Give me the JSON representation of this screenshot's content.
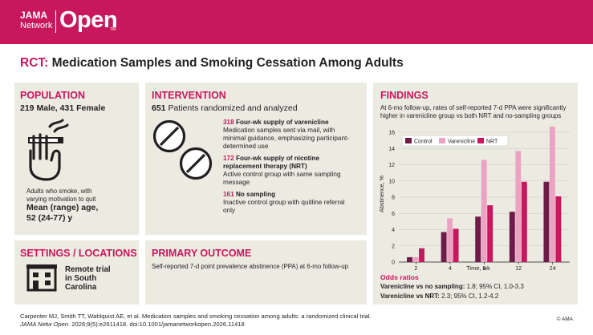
{
  "brand": {
    "jama": "JAMA",
    "network": "Network",
    "open": "Open",
    "tm": "TM"
  },
  "title": {
    "prefix": "RCT:",
    "text": "Medication Samples and Smoking Cessation Among Adults"
  },
  "population": {
    "heading": "POPULATION",
    "male_count": "219",
    "male_label": "Male,",
    "female_count": "431",
    "female_label": "Female",
    "description": "Adults who smoke, with varying motivation to quit",
    "age_label": "Mean (range) age,",
    "age_value": "52 (24-77) y",
    "icon": "cigarette-hand-icon"
  },
  "settings": {
    "heading": "SETTINGS / LOCATIONS",
    "location": "Remote trial in South Carolina",
    "icon": "building-icon"
  },
  "intervention": {
    "heading": "INTERVENTION",
    "randomized_count": "651",
    "randomized_label": "Patients randomized and analyzed",
    "icon": "pills-icon",
    "arms": [
      {
        "count": "318",
        "name": "Four-wk supply of varenicline",
        "description": "Medication samples sent via mail, with minimal guidance, emphasizing participant-determined use"
      },
      {
        "count": "172",
        "name": "Four-wk supply of nicotine replacement therapy (NRT)",
        "description": "Active control group with same sampling message"
      },
      {
        "count": "161",
        "name": "No sampling",
        "description": "Inactive control group with quitline referral only"
      }
    ]
  },
  "outcome": {
    "heading": "PRIMARY OUTCOME",
    "text": "Self-reported 7-d point prevalence abstinence (PPA) at 6-mo follow-up"
  },
  "findings": {
    "heading": "FINDINGS",
    "text": "At 6-mo follow-up, rates of self-reported 7-d PPA were significantly higher in varenicline group vs both NRT and no-sampling groups",
    "odds_heading": "Odds ratios",
    "odds": [
      {
        "label": "Varenicline vs no sampling:",
        "value": "1.8; 95% CI, 1.0-3.3"
      },
      {
        "label": "Varenicline vs NRT:",
        "value": "2.3; 95% CI, 1.2-4.2"
      }
    ]
  },
  "chart_data": {
    "type": "bar",
    "categories": [
      "2",
      "4",
      "8",
      "12",
      "24"
    ],
    "xlabel": "Time, wk",
    "ylabel": "Abstinence, %",
    "ylim": [
      0,
      16
    ],
    "yticks": [
      0,
      2,
      4,
      6,
      8,
      10,
      12,
      14,
      16
    ],
    "legend_position": "top-left",
    "grid": "horizontal",
    "series": [
      {
        "name": "Control",
        "color": "#6e1b47",
        "values": [
          0.6,
          3.7,
          5.6,
          6.2,
          9.9
        ]
      },
      {
        "name": "Varenicline",
        "color": "#eba3c3",
        "values": [
          0.6,
          5.4,
          12.6,
          13.7,
          16.7
        ]
      },
      {
        "name": "NRT",
        "color": "#c8175d",
        "values": [
          1.7,
          4.1,
          7.0,
          9.9,
          8.1
        ]
      }
    ]
  },
  "citation": {
    "line1": "Carpenter MJ, Smith TT, Wahlquist AE, et al. Medication samples and smoking cessation among adults: a randomized clinical trial.",
    "journal": "JAMA Netw Open.",
    "line2_rest": " 2026;9(5):e2611418. doi:10.1001/jamanetworkopen.2026.11418",
    "copyright": "© AMA"
  }
}
